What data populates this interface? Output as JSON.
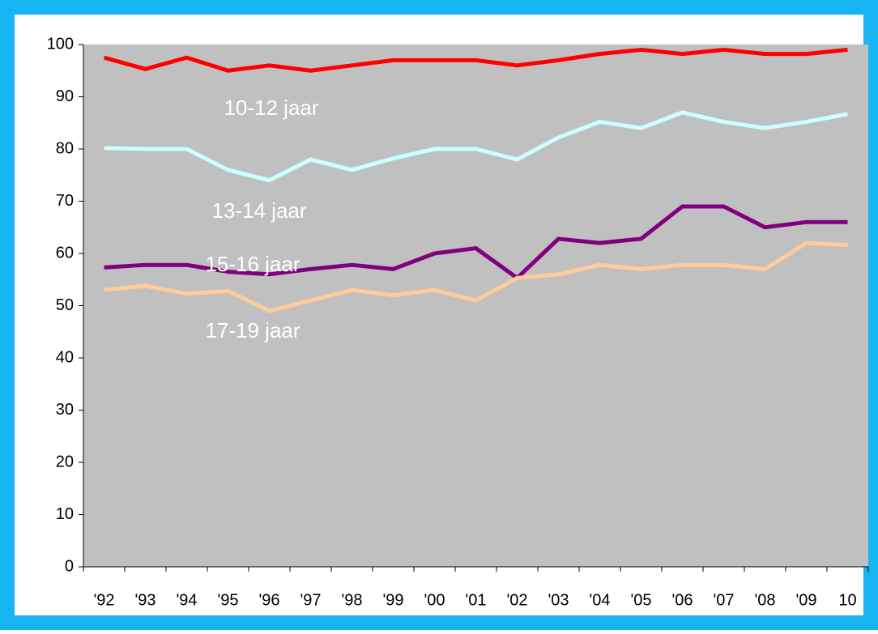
{
  "chart_data": {
    "type": "line",
    "categories": [
      "'92",
      "'93",
      "'94",
      "'95",
      "'96",
      "'97",
      "'98",
      "'99",
      "'00",
      "'01",
      "'02",
      "'03",
      "'04",
      "'05",
      "'06",
      "'07",
      "'08",
      "'09",
      "10"
    ],
    "series": [
      {
        "name": "10-12 jaar",
        "color": "#ff0000",
        "values": [
          97.5,
          95.3,
          97.5,
          95,
          96,
          95,
          96,
          97,
          97,
          97,
          96,
          97,
          98.2,
          99,
          98.2,
          99,
          98.2,
          98.2,
          99
        ]
      },
      {
        "name": "13-14 jaar",
        "color": "#ccffff",
        "values": [
          80.2,
          80,
          80,
          76,
          74,
          78,
          76,
          78.2,
          80,
          80,
          78,
          82.2,
          85.2,
          84,
          87,
          85.2,
          84,
          85.2,
          86.7
        ]
      },
      {
        "name": "15-16 jaar",
        "color": "#800080",
        "values": [
          57.3,
          57.8,
          57.8,
          56.5,
          56,
          57,
          57.8,
          57,
          60,
          61,
          55.3,
          62.8,
          62,
          62.8,
          69,
          69,
          65,
          66,
          66
        ]
      },
      {
        "name": "17-19 jaar",
        "color": "#ffcc99",
        "values": [
          53,
          53.8,
          52.3,
          52.8,
          49,
          51,
          53,
          52,
          53,
          51,
          55.3,
          56,
          57.8,
          57,
          57.8,
          57.8,
          57,
          62,
          61.6
        ]
      }
    ],
    "ylim": [
      0,
      100
    ],
    "yticks": [
      0,
      10,
      20,
      30,
      40,
      50,
      60,
      70,
      80,
      90,
      100
    ]
  }
}
